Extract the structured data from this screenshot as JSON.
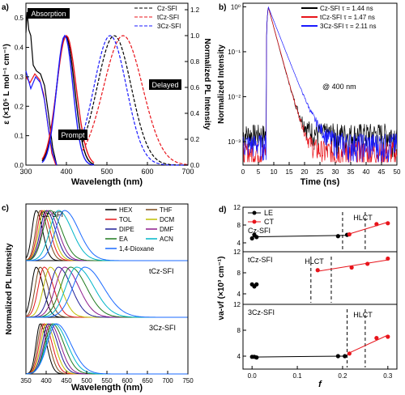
{
  "panels": [
    {
      "id": "a",
      "label": "a)",
      "xlabel": "Wavelength (nm)",
      "ylabel_left": "ε (×10⁵ L mol⁻¹ cm⁻¹)",
      "ylabel_right": "Normalized PL Intensity",
      "xticks": [
        "300",
        "400",
        "500",
        "600",
        "700"
      ],
      "yticks_left": [
        "0.0",
        "0.1",
        "0.2",
        "0.3",
        "0.4",
        "0.5"
      ],
      "yticks_right": [
        "0.0",
        "0.2",
        "0.4",
        "0.6",
        "0.8",
        "1.0",
        "1.2"
      ],
      "annotations": {
        "absorption": "Absorption",
        "prompt": "Prompt",
        "delayed": "Delayed"
      },
      "legend": [
        "Cz-SFI",
        "tCz-SFI",
        "3Cz-SFI"
      ]
    },
    {
      "id": "b",
      "label": "b)",
      "xlabel": "Time (ns)",
      "ylabel": "Normalized Intensity",
      "xticks": [
        "0",
        "5",
        "10",
        "15",
        "20",
        "25",
        "30",
        "35",
        "40",
        "45",
        "50"
      ],
      "yticks": [
        "10⁻³",
        "10⁻²",
        "10⁻¹",
        "10⁰"
      ],
      "annotation": "@ 400 nm",
      "legend": [
        "Cz-SFI τ = 1.44 ns",
        "tCz-SFI τ = 1.47 ns",
        "3Cz-SFI τ = 2.11 ns"
      ]
    },
    {
      "id": "c",
      "label": "c)",
      "xlabel": "Wavelength (nm)",
      "ylabel": "Normalized PL Intensity",
      "xticks": [
        "350",
        "400",
        "450",
        "500",
        "550",
        "600",
        "650",
        "700",
        "750"
      ],
      "subplot_labels": [
        "Cz-SFI",
        "tCz-SFI",
        "3Cz-SFI"
      ],
      "legend": [
        "HEX",
        "THF",
        "TOL",
        "DCM",
        "DIPE",
        "DMF",
        "EA",
        "ACN",
        "1,4-Dioxane"
      ]
    },
    {
      "id": "d",
      "label": "d)",
      "xlabel": "f",
      "ylabel": "νa-νf (×10³ cm⁻¹)",
      "xticks": [
        "0.0",
        "0.1",
        "0.2",
        "0.3"
      ],
      "subplot_labels": [
        "Cz-SFI",
        "tCz-SFI",
        "3Cz-SFI"
      ],
      "hlct_label": "HLCT",
      "legend": [
        "LE",
        "CT"
      ],
      "yticks": [
        [
          "4",
          "8",
          "12"
        ],
        [
          "4",
          "8",
          "12"
        ],
        [
          "4",
          "8",
          "12"
        ]
      ]
    }
  ],
  "colors": {
    "black": "#000000",
    "red": "#e8141b",
    "blue": "#1a1aff",
    "solvents": [
      "#000000",
      "#7a4b1c",
      "#e41a1c",
      "#bfbf00",
      "#1f1f99",
      "#8c1a8c",
      "#1f7a1f",
      "#00b5c8",
      "#1a6aff"
    ]
  },
  "chart_data": [
    {
      "type": "line",
      "title": "a)",
      "xlabel": "Wavelength (nm)",
      "ylabel": "ε (×10⁵ L mol⁻¹ cm⁻¹) / Normalized PL Intensity",
      "xlim": [
        300,
        700
      ],
      "ylim_left": [
        0,
        0.55
      ],
      "ylim_right": [
        0,
        1.25
      ],
      "series": [
        {
          "name": "Cz-SFI absorption",
          "x": [
            300,
            305,
            310,
            315,
            320,
            330,
            340,
            350,
            360,
            370,
            380
          ],
          "y": [
            0.45,
            0.52,
            0.43,
            0.44,
            0.32,
            0.33,
            0.31,
            0.26,
            0.15,
            0.05,
            0.0
          ]
        },
        {
          "name": "Cz-SFI prompt",
          "x": [
            340,
            360,
            380,
            390,
            400,
            410,
            420,
            440,
            460,
            480
          ],
          "y": [
            0.0,
            0.2,
            0.75,
            0.95,
            1.0,
            0.9,
            0.6,
            0.25,
            0.05,
            0.0
          ]
        },
        {
          "name": "Cz-SFI delayed",
          "x": [
            450,
            480,
            500,
            515,
            530,
            550,
            580,
            620,
            660
          ],
          "y": [
            0.0,
            0.5,
            0.9,
            1.0,
            0.95,
            0.7,
            0.35,
            0.1,
            0.02
          ]
        },
        {
          "name": "tCz-SFI delayed",
          "x": [
            460,
            490,
            520,
            540,
            560,
            590,
            630,
            680
          ],
          "y": [
            0.0,
            0.45,
            0.9,
            0.98,
            0.85,
            0.45,
            0.2,
            0.05
          ]
        },
        {
          "name": "3Cz-SFI delayed",
          "x": [
            440,
            470,
            495,
            510,
            530,
            560,
            600,
            650
          ],
          "y": [
            0.0,
            0.55,
            0.95,
            1.0,
            0.85,
            0.4,
            0.12,
            0.02
          ]
        }
      ],
      "legend": [
        "Cz-SFI",
        "tCz-SFI",
        "3Cz-SFI"
      ]
    },
    {
      "type": "line",
      "title": "b)",
      "xlabel": "Time (ns)",
      "ylabel": "Normalized Intensity",
      "xlim": [
        0,
        50
      ],
      "ylim": [
        0.0003,
        1.2
      ],
      "yscale": "log",
      "series": [
        {
          "name": "Cz-SFI τ = 1.44 ns",
          "tau": 1.44
        },
        {
          "name": "tCz-SFI τ = 1.47 ns",
          "tau": 1.47
        },
        {
          "name": "3Cz-SFI τ = 2.11 ns",
          "tau": 2.11
        }
      ]
    },
    {
      "type": "line",
      "title": "c)",
      "xlabel": "Wavelength (nm)",
      "ylabel": "Normalized PL Intensity",
      "xlim": [
        350,
        750
      ],
      "subplots": [
        {
          "name": "Cz-SFI",
          "peaks": [
            375,
            385,
            390,
            395,
            400,
            405,
            410,
            430,
            445
          ],
          "widths": [
            18,
            20,
            22,
            24,
            26,
            28,
            32,
            38,
            40
          ]
        },
        {
          "name": "tCz-SFI",
          "peaks": [
            375,
            385,
            395,
            410,
            430,
            445,
            460,
            475,
            495
          ],
          "widths": [
            20,
            22,
            26,
            30,
            36,
            40,
            44,
            48,
            52
          ]
        },
        {
          "name": "3Cz-SFI",
          "peaks": [
            385,
            390,
            395,
            400,
            405,
            410,
            415,
            420,
            425
          ],
          "widths": [
            18,
            20,
            22,
            24,
            26,
            28,
            32,
            36,
            40
          ]
        }
      ]
    },
    {
      "type": "scatter",
      "title": "d)",
      "xlabel": "f",
      "ylabel": "νa-νf (×10³ cm⁻¹)",
      "xlim": [
        -0.02,
        0.32
      ],
      "subplots": [
        {
          "name": "Cz-SFI",
          "ylim": [
            2,
            12
          ],
          "LE": [
            [
              0.0,
              5.0
            ],
            [
              0.005,
              5.8
            ],
            [
              0.01,
              5.3
            ],
            [
              0.19,
              5.5
            ],
            [
              0.21,
              5.8
            ]
          ],
          "CT": [
            [
              0.215,
              5.9
            ],
            [
              0.275,
              8.2
            ],
            [
              0.3,
              8.4
            ]
          ],
          "hlct": [
            0.2,
            0.25
          ]
        },
        {
          "name": "tCz-SFI",
          "ylim": [
            2,
            12
          ],
          "LE": [
            [
              0.0,
              5.8
            ],
            [
              0.005,
              5.4
            ],
            [
              0.01,
              5.8
            ]
          ],
          "CT": [
            [
              0.145,
              8.5
            ],
            [
              0.22,
              9.0
            ],
            [
              0.255,
              9.7
            ],
            [
              0.3,
              10.7
            ]
          ],
          "hlct": [
            0.13,
            0.175
          ]
        },
        {
          "name": "3Cz-SFI",
          "ylim": [
            2,
            12
          ],
          "LE": [
            [
              0.0,
              3.9
            ],
            [
              0.005,
              3.9
            ],
            [
              0.01,
              3.8
            ],
            [
              0.19,
              4.0
            ],
            [
              0.205,
              4.0
            ]
          ],
          "CT": [
            [
              0.215,
              4.4
            ],
            [
              0.275,
              6.8
            ],
            [
              0.3,
              7.0
            ]
          ],
          "hlct": [
            0.21,
            0.25
          ]
        }
      ],
      "legend": [
        "LE",
        "CT"
      ]
    }
  ]
}
